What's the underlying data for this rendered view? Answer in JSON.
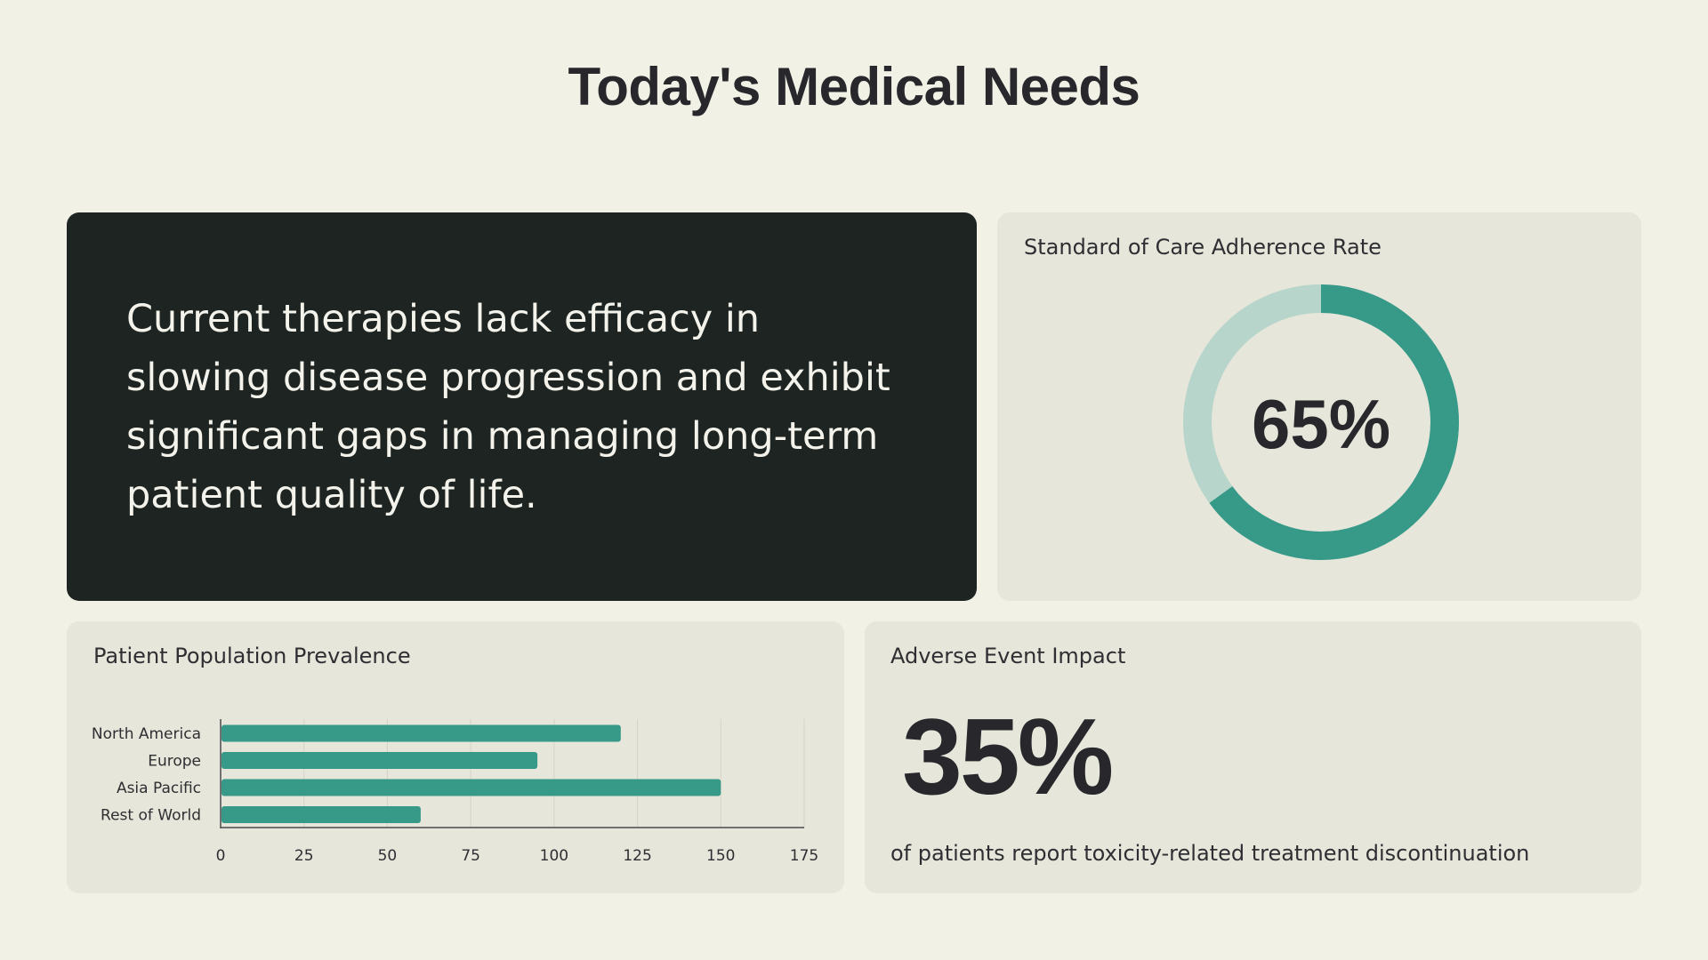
{
  "page": {
    "title": "Today's Medical Needs"
  },
  "statement": {
    "text": "Current therapies lack efficacy in slowing disease progression and exhibit significant gaps in managing long-term patient quality of life."
  },
  "adherence": {
    "label": "Standard of Care Adherence Rate",
    "value_text": "65%"
  },
  "impact": {
    "label": "Adverse Event Impact",
    "value_text": "35%",
    "description": "of patients report toxicity-related treatment discontinuation"
  },
  "colors": {
    "background": "#f1f1e6",
    "card": "#e6e6da",
    "dark_card": "#1d2421",
    "accent": "#379a89",
    "accent_light": "#b7d5cb",
    "text": "#27272c"
  },
  "chart_data": [
    {
      "type": "pie",
      "title": "Standard of Care Adherence Rate",
      "variant": "donut",
      "values": [
        65,
        35
      ],
      "colors": [
        "#379a89",
        "#b7d5cb"
      ],
      "center_label": "65%"
    },
    {
      "type": "bar",
      "orientation": "horizontal",
      "title": "Patient Population Prevalence",
      "categories": [
        "North America",
        "Europe",
        "Asia Pacific",
        "Rest of World"
      ],
      "values": [
        120,
        95,
        150,
        60
      ],
      "xlim": [
        0,
        175
      ],
      "xticks": [
        0,
        25,
        50,
        75,
        100,
        125,
        150,
        175
      ],
      "xlabel": "",
      "ylabel": "",
      "grid": true,
      "color": "#379a89"
    }
  ]
}
